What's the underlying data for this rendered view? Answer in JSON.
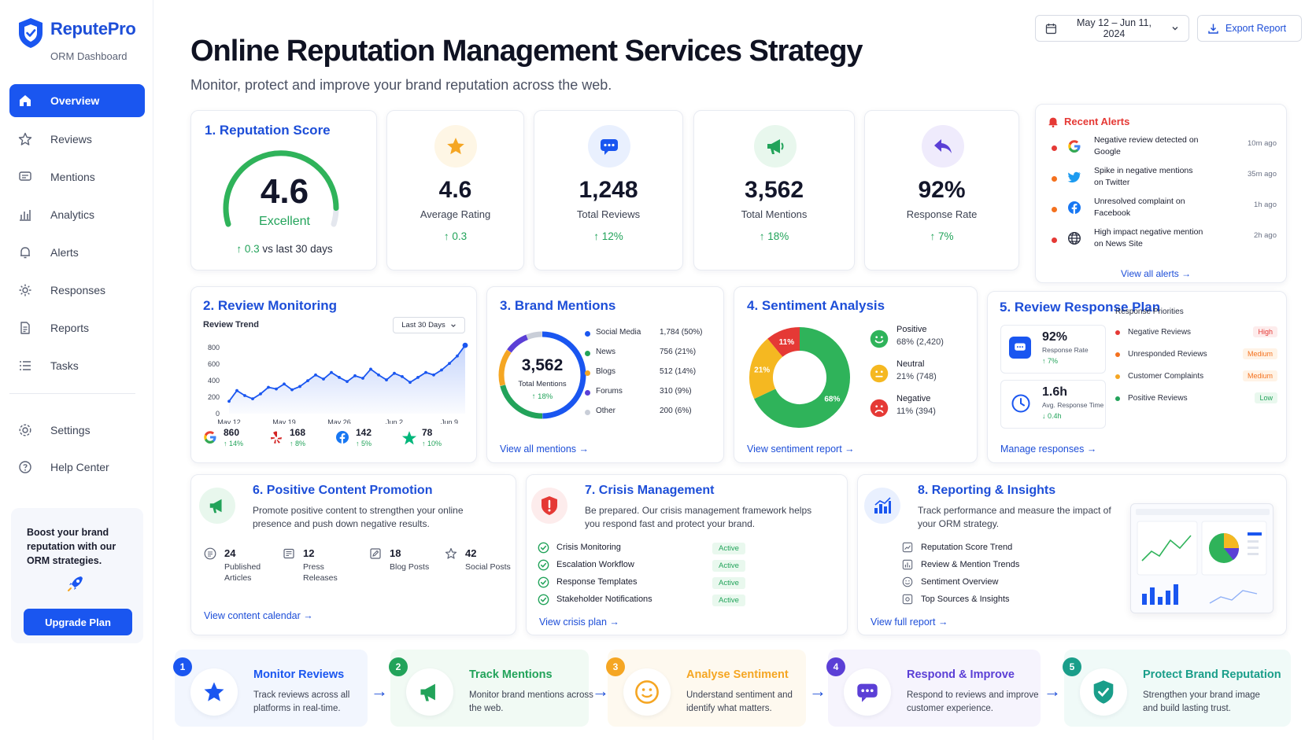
{
  "app": {
    "name": "ReputePro",
    "subtitle": "ORM Dashboard"
  },
  "sidebar": {
    "items": [
      {
        "label": "Overview",
        "icon": "home-icon"
      },
      {
        "label": "Reviews",
        "icon": "star-icon"
      },
      {
        "label": "Mentions",
        "icon": "message-icon"
      },
      {
        "label": "Analytics",
        "icon": "bar-chart-icon"
      },
      {
        "label": "Alerts",
        "icon": "bell-icon"
      },
      {
        "label": "Responses",
        "icon": "gear-icon"
      },
      {
        "label": "Reports",
        "icon": "document-icon"
      },
      {
        "label": "Tasks",
        "icon": "list-icon"
      },
      {
        "label": "Settings",
        "icon": "settings-icon"
      },
      {
        "label": "Help Center",
        "icon": "help-icon"
      }
    ],
    "promo": {
      "text": "Boost your brand reputation with our ORM strategies.",
      "button": "Upgrade Plan"
    }
  },
  "header": {
    "title": "Online Reputation Management Services Strategy",
    "subtitle": "Monitor, protect and improve your brand reputation across the web.",
    "date_range": "May 12 – Jun 11, 2024",
    "export": "Export Report"
  },
  "reputation_score": {
    "title": "1. Reputation Score",
    "score": "4.6",
    "rating": "Excellent",
    "gauge_fraction": 0.92,
    "change": "0.3",
    "change_label": "vs last 30 days"
  },
  "kpis": [
    {
      "value": "4.6",
      "label": "Average Rating",
      "trend": "↑ 0.3",
      "icon": "star-icon",
      "color": "#f5a623"
    },
    {
      "value": "1,248",
      "label": "Total Reviews",
      "trend": "↑ 12%",
      "icon": "chat-icon",
      "color": "#1a56f0"
    },
    {
      "value": "3,562",
      "label": "Total Mentions",
      "trend": "↑ 18%",
      "icon": "megaphone-icon",
      "color": "#22a35a"
    },
    {
      "value": "92%",
      "label": "Response Rate",
      "trend": "↑ 7%",
      "icon": "reply-icon",
      "color": "#5b3fd6"
    }
  ],
  "alerts": {
    "title": "Recent Alerts",
    "items": [
      {
        "text": "Negative review detected on Google",
        "time": "10m ago",
        "source": "google-icon",
        "dot": "#e53935"
      },
      {
        "text": "Spike in negative mentions on Twitter",
        "time": "35m ago",
        "source": "twitter-icon",
        "dot": "#f4711e"
      },
      {
        "text": "Unresolved complaint on Facebook",
        "time": "1h ago",
        "source": "facebook-icon",
        "dot": "#f4711e"
      },
      {
        "text": "High impact negative mention on News Site",
        "time": "2h ago",
        "source": "globe-icon",
        "dot": "#e53935"
      }
    ],
    "link": "View all alerts"
  },
  "review_monitoring": {
    "title": "2. Review Monitoring",
    "chart_label": "Review Trend",
    "range": "Last 30 Days",
    "platforms": [
      {
        "value": "860",
        "trend": "↑ 14%",
        "icon": "google-icon"
      },
      {
        "value": "168",
        "trend": "↑ 8%",
        "icon": "yelp-icon"
      },
      {
        "value": "142",
        "trend": "↑ 5%",
        "icon": "facebook-icon"
      },
      {
        "value": "78",
        "trend": "↑ 10%",
        "icon": "trustpilot-icon"
      }
    ]
  },
  "chart_data": {
    "type": "area",
    "x": [
      "May 12",
      "May 13",
      "May 14",
      "May 15",
      "May 16",
      "May 17",
      "May 18",
      "May 19",
      "May 20",
      "May 21",
      "May 22",
      "May 23",
      "May 24",
      "May 25",
      "May 26",
      "May 27",
      "May 28",
      "May 29",
      "May 30",
      "May 31",
      "Jun 1",
      "Jun 2",
      "Jun 3",
      "Jun 4",
      "Jun 5",
      "Jun 6",
      "Jun 7",
      "Jun 8",
      "Jun 9",
      "Jun 10",
      "Jun 11"
    ],
    "xticks": [
      "May 12",
      "May 19",
      "May 26",
      "Jun 2",
      "Jun 9"
    ],
    "values": [
      150,
      280,
      220,
      180,
      240,
      320,
      300,
      360,
      290,
      330,
      400,
      470,
      420,
      500,
      440,
      390,
      460,
      430,
      540,
      470,
      410,
      490,
      450,
      380,
      440,
      500,
      470,
      530,
      610,
      700,
      830
    ],
    "yticks": [
      0,
      200,
      400,
      600,
      800
    ],
    "ylim": [
      0,
      850
    ],
    "grid": false,
    "legend": "none"
  },
  "brand_mentions": {
    "title": "3. Brand Mentions",
    "total": "3,562",
    "total_label": "Total Mentions",
    "trend": "↑ 18%",
    "channels": [
      {
        "name": "Social Media",
        "value": "1,784 (50%)",
        "share": 50,
        "color": "#1a56f0"
      },
      {
        "name": "News",
        "value": "756 (21%)",
        "share": 21,
        "color": "#22a35a"
      },
      {
        "name": "Blogs",
        "value": "512 (14%)",
        "share": 14,
        "color": "#f5a623"
      },
      {
        "name": "Forums",
        "value": "310 (9%)",
        "share": 9,
        "color": "#5b3fd6"
      },
      {
        "name": "Other",
        "value": "200 (6%)",
        "share": 6,
        "color": "#c9ced8"
      }
    ],
    "link": "View all mentions"
  },
  "sentiment": {
    "title": "4. Sentiment Analysis",
    "items": [
      {
        "label": "Positive",
        "value": "68% (2,420)",
        "share": 68,
        "pct": "68%",
        "color": "#2fb35a"
      },
      {
        "label": "Neutral",
        "value": "21% (748)",
        "share": 21,
        "pct": "21%",
        "color": "#f5b821"
      },
      {
        "label": "Negative",
        "value": "11% (394)",
        "share": 11,
        "pct": "11%",
        "color": "#e53935"
      }
    ],
    "link": "View sentiment report"
  },
  "response_plan": {
    "title": "5. Review Response Plan",
    "rate": "92%",
    "rate_label": "Response Rate",
    "rate_trend": "↑ 7%",
    "time": "1.6h",
    "time_label": "Avg. Response Time",
    "time_trend": "↓ 0.4h",
    "priorities_title": "Response Priorities",
    "priorities": [
      {
        "label": "Negative Reviews",
        "level": "High",
        "color": "#e53935"
      },
      {
        "label": "Unresponded Reviews",
        "level": "Medium",
        "color": "#f4711e"
      },
      {
        "label": "Customer Complaints",
        "level": "Medium",
        "color": "#f5a623"
      },
      {
        "label": "Positive Reviews",
        "level": "Low",
        "color": "#22a35a"
      }
    ],
    "link": "Manage responses"
  },
  "content_promotion": {
    "title": "6. Positive Content Promotion",
    "desc": "Promote positive content to strengthen your online presence and push down negative results.",
    "stats": [
      {
        "value": "24",
        "label": "Published Articles",
        "icon": "article-icon"
      },
      {
        "value": "12",
        "label": "Press Releases",
        "icon": "press-icon"
      },
      {
        "value": "18",
        "label": "Blog Posts",
        "icon": "edit-icon"
      },
      {
        "value": "42",
        "label": "Social Posts",
        "icon": "share-icon"
      }
    ],
    "link": "View content calendar"
  },
  "crisis": {
    "title": "7. Crisis Management",
    "desc": "Be prepared. Our crisis management framework helps you respond fast and protect your brand.",
    "items": [
      {
        "label": "Crisis Monitoring",
        "status": "Active"
      },
      {
        "label": "Escalation Workflow",
        "status": "Active"
      },
      {
        "label": "Response Templates",
        "status": "Active"
      },
      {
        "label": "Stakeholder Notifications",
        "status": "Active"
      }
    ],
    "link": "View crisis plan"
  },
  "reporting": {
    "title": "8. Reporting & Insights",
    "desc": "Track performance and measure the impact of your ORM strategy.",
    "items": [
      {
        "label": "Reputation Score Trend",
        "icon": "trend-icon"
      },
      {
        "label": "Review & Mention Trends",
        "icon": "chart-icon"
      },
      {
        "label": "Sentiment Overview",
        "icon": "smile-icon"
      },
      {
        "label": "Top Sources & Insights",
        "icon": "source-icon"
      }
    ],
    "link": "View full report"
  },
  "steps": [
    {
      "num": "1",
      "title": "Monitor Reviews",
      "desc": "Track reviews across all platforms in real-time.",
      "color": "#1a56f0",
      "bg": "#f2f6fe",
      "icon": "star-icon"
    },
    {
      "num": "2",
      "title": "Track Mentions",
      "desc": "Monitor brand mentions across the web.",
      "color": "#22a35a",
      "bg": "#f1faf4",
      "icon": "megaphone-icon"
    },
    {
      "num": "3",
      "title": "Analyse Sentiment",
      "desc": "Understand sentiment and identify what matters.",
      "color": "#f5a623",
      "bg": "#fef9ef",
      "icon": "smile-icon"
    },
    {
      "num": "4",
      "title": "Respond & Improve",
      "desc": "Respond to reviews and improve customer experience.",
      "color": "#5b3fd6",
      "bg": "#f6f4fd",
      "icon": "chat-icon"
    },
    {
      "num": "5",
      "title": "Protect Brand Reputation",
      "desc": "Strengthen your brand image and build lasting trust.",
      "color": "#1a9e8a",
      "bg": "#f0faf8",
      "icon": "shield-icon"
    }
  ]
}
